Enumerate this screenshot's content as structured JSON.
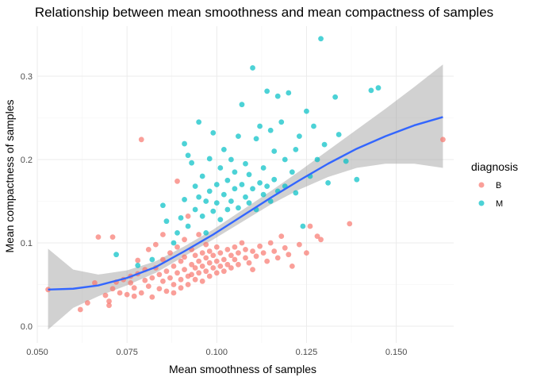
{
  "chart_data": {
    "type": "scatter",
    "title": "Relationship between mean smoothness and mean compactness of samples",
    "xlabel": "Mean smoothness of samples",
    "ylabel": "Mean compactness of samples",
    "xlim": [
      0.05,
      0.166
    ],
    "ylim": [
      -0.02,
      0.36
    ],
    "x_ticks": [
      0.05,
      0.075,
      0.1,
      0.125,
      0.15
    ],
    "x_tick_labels": [
      "0.050",
      "0.075",
      "0.100",
      "0.125",
      "0.150"
    ],
    "y_ticks": [
      0.0,
      0.1,
      0.2,
      0.3
    ],
    "y_tick_labels": [
      "0.0",
      "0.1",
      "0.2",
      "0.3"
    ],
    "grid": true,
    "legend": {
      "title": "diagnosis",
      "placement": "right",
      "entries": [
        {
          "label": "B",
          "color": "#F8766D"
        },
        {
          "label": "M",
          "color": "#00BFC4"
        }
      ]
    },
    "series": [
      {
        "name": "B",
        "color": "#F8766D",
        "points": [
          [
            0.053,
            0.044
          ],
          [
            0.062,
            0.02
          ],
          [
            0.064,
            0.028
          ],
          [
            0.066,
            0.052
          ],
          [
            0.067,
            0.107
          ],
          [
            0.069,
            0.037
          ],
          [
            0.07,
            0.025
          ],
          [
            0.07,
            0.03
          ],
          [
            0.071,
            0.107
          ],
          [
            0.071,
            0.045
          ],
          [
            0.072,
            0.053
          ],
          [
            0.073,
            0.04
          ],
          [
            0.074,
            0.056
          ],
          [
            0.075,
            0.038
          ],
          [
            0.076,
            0.052
          ],
          [
            0.076,
            0.06
          ],
          [
            0.077,
            0.036
          ],
          [
            0.077,
            0.046
          ],
          [
            0.078,
            0.063
          ],
          [
            0.078,
            0.079
          ],
          [
            0.079,
            0.224
          ],
          [
            0.079,
            0.04
          ],
          [
            0.08,
            0.055
          ],
          [
            0.08,
            0.068
          ],
          [
            0.081,
            0.048
          ],
          [
            0.081,
            0.092
          ],
          [
            0.082,
            0.058
          ],
          [
            0.082,
            0.035
          ],
          [
            0.083,
            0.07
          ],
          [
            0.083,
            0.098
          ],
          [
            0.084,
            0.045
          ],
          [
            0.084,
            0.062
          ],
          [
            0.085,
            0.054
          ],
          [
            0.085,
            0.08
          ],
          [
            0.085,
            0.11
          ],
          [
            0.086,
            0.042
          ],
          [
            0.086,
            0.066
          ],
          [
            0.087,
            0.058
          ],
          [
            0.087,
            0.088
          ],
          [
            0.088,
            0.05
          ],
          [
            0.088,
            0.072
          ],
          [
            0.088,
            0.04
          ],
          [
            0.089,
            0.064
          ],
          [
            0.089,
            0.095
          ],
          [
            0.089,
            0.174
          ],
          [
            0.09,
            0.056
          ],
          [
            0.09,
            0.078
          ],
          [
            0.09,
            0.046
          ],
          [
            0.091,
            0.068
          ],
          [
            0.091,
            0.104
          ],
          [
            0.091,
            0.083
          ],
          [
            0.092,
            0.06
          ],
          [
            0.092,
            0.05
          ],
          [
            0.092,
            0.132
          ],
          [
            0.093,
            0.074
          ],
          [
            0.093,
            0.092
          ],
          [
            0.093,
            0.062
          ],
          [
            0.094,
            0.085
          ],
          [
            0.094,
            0.056
          ],
          [
            0.094,
            0.07
          ],
          [
            0.095,
            0.078
          ],
          [
            0.095,
            0.11
          ],
          [
            0.095,
            0.064
          ],
          [
            0.096,
            0.088
          ],
          [
            0.096,
            0.072
          ],
          [
            0.096,
            0.054
          ],
          [
            0.097,
            0.082
          ],
          [
            0.097,
            0.066
          ],
          [
            0.097,
            0.098
          ],
          [
            0.098,
            0.076
          ],
          [
            0.098,
            0.06
          ],
          [
            0.098,
            0.09
          ],
          [
            0.099,
            0.07
          ],
          [
            0.099,
            0.085
          ],
          [
            0.1,
            0.078
          ],
          [
            0.1,
            0.064
          ],
          [
            0.1,
            0.095
          ],
          [
            0.101,
            0.072
          ],
          [
            0.101,
            0.088
          ],
          [
            0.102,
            0.08
          ],
          [
            0.102,
            0.066
          ],
          [
            0.103,
            0.092
          ],
          [
            0.103,
            0.074
          ],
          [
            0.104,
            0.085
          ],
          [
            0.104,
            0.07
          ],
          [
            0.105,
            0.095
          ],
          [
            0.105,
            0.08
          ],
          [
            0.106,
            0.088
          ],
          [
            0.106,
            0.074
          ],
          [
            0.107,
            0.1
          ],
          [
            0.108,
            0.082
          ],
          [
            0.108,
            0.092
          ],
          [
            0.109,
            0.076
          ],
          [
            0.11,
            0.09
          ],
          [
            0.11,
            0.068
          ],
          [
            0.111,
            0.084
          ],
          [
            0.112,
            0.096
          ],
          [
            0.113,
            0.088
          ],
          [
            0.114,
            0.078
          ],
          [
            0.115,
            0.1
          ],
          [
            0.116,
            0.09
          ],
          [
            0.117,
            0.082
          ],
          [
            0.118,
            0.108
          ],
          [
            0.119,
            0.094
          ],
          [
            0.12,
            0.086
          ],
          [
            0.121,
            0.072
          ],
          [
            0.123,
            0.098
          ],
          [
            0.125,
            0.088
          ],
          [
            0.126,
            0.12
          ],
          [
            0.128,
            0.108
          ],
          [
            0.129,
            0.104
          ],
          [
            0.137,
            0.123
          ],
          [
            0.163,
            0.224
          ]
        ]
      },
      {
        "name": "M",
        "color": "#00BFC4",
        "points": [
          [
            0.072,
            0.086
          ],
          [
            0.078,
            0.073
          ],
          [
            0.082,
            0.08
          ],
          [
            0.085,
            0.145
          ],
          [
            0.086,
            0.126
          ],
          [
            0.088,
            0.1
          ],
          [
            0.089,
            0.112
          ],
          [
            0.09,
            0.13
          ],
          [
            0.091,
            0.219
          ],
          [
            0.091,
            0.152
          ],
          [
            0.092,
            0.205
          ],
          [
            0.092,
            0.12
          ],
          [
            0.093,
            0.196
          ],
          [
            0.094,
            0.168
          ],
          [
            0.094,
            0.14
          ],
          [
            0.095,
            0.245
          ],
          [
            0.095,
            0.155
          ],
          [
            0.096,
            0.132
          ],
          [
            0.096,
            0.18
          ],
          [
            0.097,
            0.15
          ],
          [
            0.097,
            0.112
          ],
          [
            0.098,
            0.201
          ],
          [
            0.098,
            0.162
          ],
          [
            0.099,
            0.138
          ],
          [
            0.099,
            0.232
          ],
          [
            0.1,
            0.17
          ],
          [
            0.1,
            0.148
          ],
          [
            0.101,
            0.128
          ],
          [
            0.101,
            0.19
          ],
          [
            0.102,
            0.158
          ],
          [
            0.102,
            0.212
          ],
          [
            0.103,
            0.14
          ],
          [
            0.103,
            0.175
          ],
          [
            0.104,
            0.2
          ],
          [
            0.104,
            0.15
          ],
          [
            0.105,
            0.165
          ],
          [
            0.105,
            0.185
          ],
          [
            0.106,
            0.228
          ],
          [
            0.106,
            0.142
          ],
          [
            0.107,
            0.266
          ],
          [
            0.107,
            0.17
          ],
          [
            0.108,
            0.155
          ],
          [
            0.108,
            0.195
          ],
          [
            0.109,
            0.148
          ],
          [
            0.109,
            0.182
          ],
          [
            0.11,
            0.31
          ],
          [
            0.11,
            0.165
          ],
          [
            0.111,
            0.225
          ],
          [
            0.111,
            0.14
          ],
          [
            0.112,
            0.172
          ],
          [
            0.112,
            0.24
          ],
          [
            0.113,
            0.158
          ],
          [
            0.113,
            0.19
          ],
          [
            0.114,
            0.282
          ],
          [
            0.114,
            0.168
          ],
          [
            0.115,
            0.235
          ],
          [
            0.115,
            0.15
          ],
          [
            0.116,
            0.21
          ],
          [
            0.116,
            0.176
          ],
          [
            0.117,
            0.276
          ],
          [
            0.117,
            0.162
          ],
          [
            0.118,
            0.245
          ],
          [
            0.119,
            0.2
          ],
          [
            0.119,
            0.168
          ],
          [
            0.12,
            0.28
          ],
          [
            0.121,
            0.185
          ],
          [
            0.122,
            0.16
          ],
          [
            0.122,
            0.212
          ],
          [
            0.123,
            0.228
          ],
          [
            0.124,
            0.12
          ],
          [
            0.125,
            0.258
          ],
          [
            0.126,
            0.18
          ],
          [
            0.127,
            0.24
          ],
          [
            0.128,
            0.2
          ],
          [
            0.129,
            0.345
          ],
          [
            0.13,
            0.218
          ],
          [
            0.131,
            0.172
          ],
          [
            0.133,
            0.275
          ],
          [
            0.134,
            0.23
          ],
          [
            0.136,
            0.198
          ],
          [
            0.139,
            0.176
          ],
          [
            0.143,
            0.283
          ],
          [
            0.145,
            0.286
          ]
        ]
      }
    ],
    "smooth_line": {
      "color": "#3366FF",
      "x": [
        0.053,
        0.06,
        0.067,
        0.075,
        0.083,
        0.091,
        0.099,
        0.107,
        0.115,
        0.123,
        0.131,
        0.139,
        0.147,
        0.155,
        0.163
      ],
      "y": [
        0.044,
        0.045,
        0.049,
        0.058,
        0.071,
        0.09,
        0.11,
        0.132,
        0.154,
        0.175,
        0.195,
        0.213,
        0.228,
        0.241,
        0.251
      ],
      "ci_lower": [
        -0.004,
        0.022,
        0.036,
        0.049,
        0.064,
        0.084,
        0.104,
        0.125,
        0.146,
        0.164,
        0.179,
        0.19,
        0.195,
        0.195,
        0.19
      ],
      "ci_upper": [
        0.093,
        0.068,
        0.062,
        0.067,
        0.078,
        0.096,
        0.116,
        0.139,
        0.162,
        0.186,
        0.211,
        0.236,
        0.261,
        0.287,
        0.314
      ]
    }
  }
}
